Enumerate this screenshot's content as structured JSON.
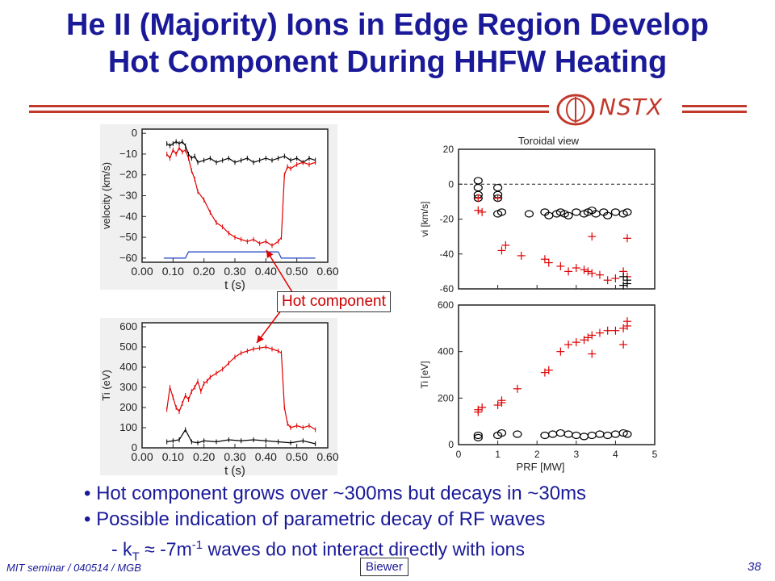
{
  "title_line1": "He II (Majority) Ions in Edge Region Develop",
  "title_line2": "Hot Component During HHFW Heating",
  "logo_text": "NSTX",
  "annotation": "Hot component",
  "bullets": [
    "• Hot component grows over ~300ms but decays in ~30ms",
    "• Possible indication of parametric decay of RF waves"
  ],
  "sub_bullet": {
    "prefix": "-  k",
    "sub1": "T",
    "mid": " ≈ -7m",
    "sup": "-1",
    "suffix": " waves do not interact directly with ions"
  },
  "footer": "MIT seminar / 040514 / MGB",
  "author_box": "Biewer",
  "page_number": "38",
  "colors": {
    "title": "#1a1a99",
    "accent": "#c0392b",
    "hot": "#e00000",
    "cold": "#000000",
    "blue": "#1f3fbf"
  },
  "chart_data": [
    {
      "type": "line",
      "xlabel": "t (s)",
      "ylabel": "velocity (km/s)",
      "xlim": [
        0.0,
        0.6
      ],
      "ylim": [
        -62,
        2
      ],
      "xticks": [
        "0.00",
        "0.10",
        "0.20",
        "0.30",
        "0.40",
        "0.50",
        "0.60"
      ],
      "yticks": [
        "0",
        "−10",
        "−20",
        "−30",
        "−40",
        "−50",
        "−60"
      ],
      "series": [
        {
          "color": "#000000",
          "x": [
            0.08,
            0.09,
            0.1,
            0.11,
            0.12,
            0.13,
            0.14,
            0.15,
            0.16,
            0.17,
            0.18,
            0.2,
            0.22,
            0.24,
            0.26,
            0.28,
            0.3,
            0.32,
            0.34,
            0.36,
            0.38,
            0.4,
            0.42,
            0.44,
            0.46,
            0.48,
            0.5,
            0.52,
            0.54,
            0.56
          ],
          "y": [
            -5,
            -6,
            -5,
            -4,
            -5,
            -4,
            -6,
            -10,
            -12,
            -11,
            -14,
            -13,
            -12,
            -14,
            -13,
            -12,
            -14,
            -13,
            -12,
            -14,
            -13,
            -12,
            -13,
            -12,
            -11,
            -13,
            -12,
            -14,
            -12,
            -13
          ]
        },
        {
          "color": "#e00000",
          "x": [
            0.08,
            0.09,
            0.1,
            0.11,
            0.12,
            0.13,
            0.14,
            0.15,
            0.16,
            0.17,
            0.18,
            0.2,
            0.22,
            0.24,
            0.26,
            0.28,
            0.3,
            0.32,
            0.34,
            0.36,
            0.38,
            0.4,
            0.42,
            0.44,
            0.45,
            0.46,
            0.47,
            0.48,
            0.5,
            0.52,
            0.54,
            0.56
          ],
          "y": [
            -10,
            -12,
            -8,
            -10,
            -7,
            -9,
            -8,
            -12,
            -18,
            -22,
            -28,
            -32,
            -38,
            -43,
            -45,
            -48,
            -50,
            -51,
            -52,
            -51,
            -53,
            -52,
            -54,
            -52,
            -50,
            -20,
            -16,
            -17,
            -15,
            -14,
            -15,
            -14
          ]
        },
        {
          "color": "#1f3fbf",
          "x": [
            0.07,
            0.1,
            0.14,
            0.15,
            0.2,
            0.3,
            0.4,
            0.44,
            0.45,
            0.52,
            0.56
          ],
          "y": [
            -60,
            -60,
            -60,
            -57,
            -57,
            -57,
            -57,
            -57,
            -60,
            -60,
            -60
          ]
        }
      ]
    },
    {
      "type": "line",
      "xlabel": "t (s)",
      "ylabel": "Ti (eV)",
      "xlim": [
        0.0,
        0.6
      ],
      "ylim": [
        0,
        620
      ],
      "xticks": [
        "0.00",
        "0.10",
        "0.20",
        "0.30",
        "0.40",
        "0.50",
        "0.60"
      ],
      "yticks": [
        "0",
        "100",
        "200",
        "300",
        "400",
        "500",
        "600"
      ],
      "series": [
        {
          "color": "#e00000",
          "x": [
            0.08,
            0.09,
            0.1,
            0.11,
            0.12,
            0.13,
            0.14,
            0.15,
            0.16,
            0.17,
            0.18,
            0.19,
            0.2,
            0.21,
            0.22,
            0.24,
            0.26,
            0.28,
            0.3,
            0.32,
            0.34,
            0.36,
            0.38,
            0.4,
            0.42,
            0.44,
            0.45,
            0.46,
            0.47,
            0.48,
            0.5,
            0.52,
            0.54,
            0.56
          ],
          "y": [
            190,
            300,
            250,
            200,
            180,
            220,
            260,
            240,
            280,
            300,
            330,
            280,
            320,
            330,
            350,
            370,
            390,
            420,
            450,
            470,
            480,
            490,
            495,
            500,
            490,
            480,
            470,
            200,
            120,
            100,
            110,
            100,
            110,
            90
          ]
        },
        {
          "color": "#000000",
          "x": [
            0.08,
            0.1,
            0.12,
            0.14,
            0.16,
            0.18,
            0.2,
            0.24,
            0.28,
            0.32,
            0.36,
            0.4,
            0.44,
            0.48,
            0.52,
            0.56
          ],
          "y": [
            30,
            35,
            40,
            90,
            30,
            25,
            35,
            30,
            40,
            35,
            40,
            35,
            30,
            25,
            35,
            20
          ]
        }
      ]
    },
    {
      "type": "scatter",
      "title": "Toroidal view",
      "xlabel": "P_RF [MW]",
      "ylabel": "v_i [km/s]",
      "xlim": [
        0,
        5
      ],
      "ylim": [
        -60,
        20
      ],
      "yticks": [
        "20",
        "0",
        "-20",
        "-40",
        "-60"
      ],
      "series": [
        {
          "color": "#000000",
          "marker": "circle",
          "x": [
            0.5,
            0.5,
            0.5,
            0.5,
            1.0,
            1.0,
            1.0,
            1.0,
            1.1,
            1.8,
            2.2,
            2.3,
            2.5,
            2.6,
            2.7,
            2.8,
            3.0,
            3.2,
            3.3,
            3.4,
            3.5,
            3.7,
            3.8,
            4.0,
            4.2,
            4.3
          ],
          "y": [
            2,
            -2,
            -6,
            -8,
            -2,
            -6,
            -8,
            -17,
            -16,
            -17,
            -16,
            -18,
            -17,
            -16,
            -17,
            -18,
            -16,
            -17,
            -16,
            -15,
            -17,
            -16,
            -18,
            -16,
            -17,
            -16
          ]
        },
        {
          "color": "#e00000",
          "marker": "plus",
          "x": [
            0.5,
            0.5,
            0.6,
            1.0,
            1.1,
            1.2,
            1.6,
            2.2,
            2.3,
            2.6,
            2.8,
            3.0,
            3.2,
            3.3,
            3.4,
            3.6,
            3.8,
            4.0,
            4.2,
            4.3,
            3.4,
            4.3
          ],
          "y": [
            -8,
            -15,
            -16,
            -8,
            -38,
            -35,
            -41,
            -43,
            -45,
            -47,
            -50,
            -48,
            -49,
            -50,
            -51,
            -52,
            -55,
            -54,
            -50,
            -53,
            -30,
            -31
          ]
        },
        {
          "color": "#000000",
          "marker": "plus",
          "x": [
            4.2,
            4.3,
            4.3,
            4.2
          ],
          "y": [
            -53,
            -55,
            -57,
            -58
          ]
        }
      ]
    },
    {
      "type": "scatter",
      "xlabel": "P_RF [MW]",
      "ylabel": "T_i [eV]",
      "xlim": [
        0,
        5
      ],
      "ylim": [
        0,
        600
      ],
      "xticks": [
        "0",
        "1",
        "2",
        "3",
        "4",
        "5"
      ],
      "yticks": [
        "600",
        "400",
        "200",
        "0"
      ],
      "series": [
        {
          "color": "#e00000",
          "marker": "plus",
          "x": [
            0.5,
            0.5,
            0.6,
            1.0,
            1.1,
            1.1,
            1.5,
            2.2,
            2.3,
            2.6,
            2.8,
            3.0,
            3.2,
            3.3,
            3.4,
            3.6,
            3.8,
            4.0,
            4.2,
            4.3,
            4.3,
            4.2,
            3.4
          ],
          "y": [
            140,
            150,
            160,
            170,
            180,
            190,
            240,
            310,
            320,
            400,
            430,
            440,
            450,
            460,
            470,
            480,
            490,
            490,
            500,
            510,
            530,
            430,
            390
          ]
        },
        {
          "color": "#000000",
          "marker": "circle",
          "x": [
            0.5,
            0.5,
            1.0,
            1.1,
            1.5,
            2.2,
            2.4,
            2.6,
            2.8,
            3.0,
            3.2,
            3.4,
            3.6,
            3.8,
            4.0,
            4.2,
            4.3
          ],
          "y": [
            40,
            30,
            40,
            50,
            45,
            40,
            45,
            50,
            45,
            40,
            35,
            40,
            45,
            40,
            45,
            50,
            45
          ]
        }
      ]
    }
  ]
}
